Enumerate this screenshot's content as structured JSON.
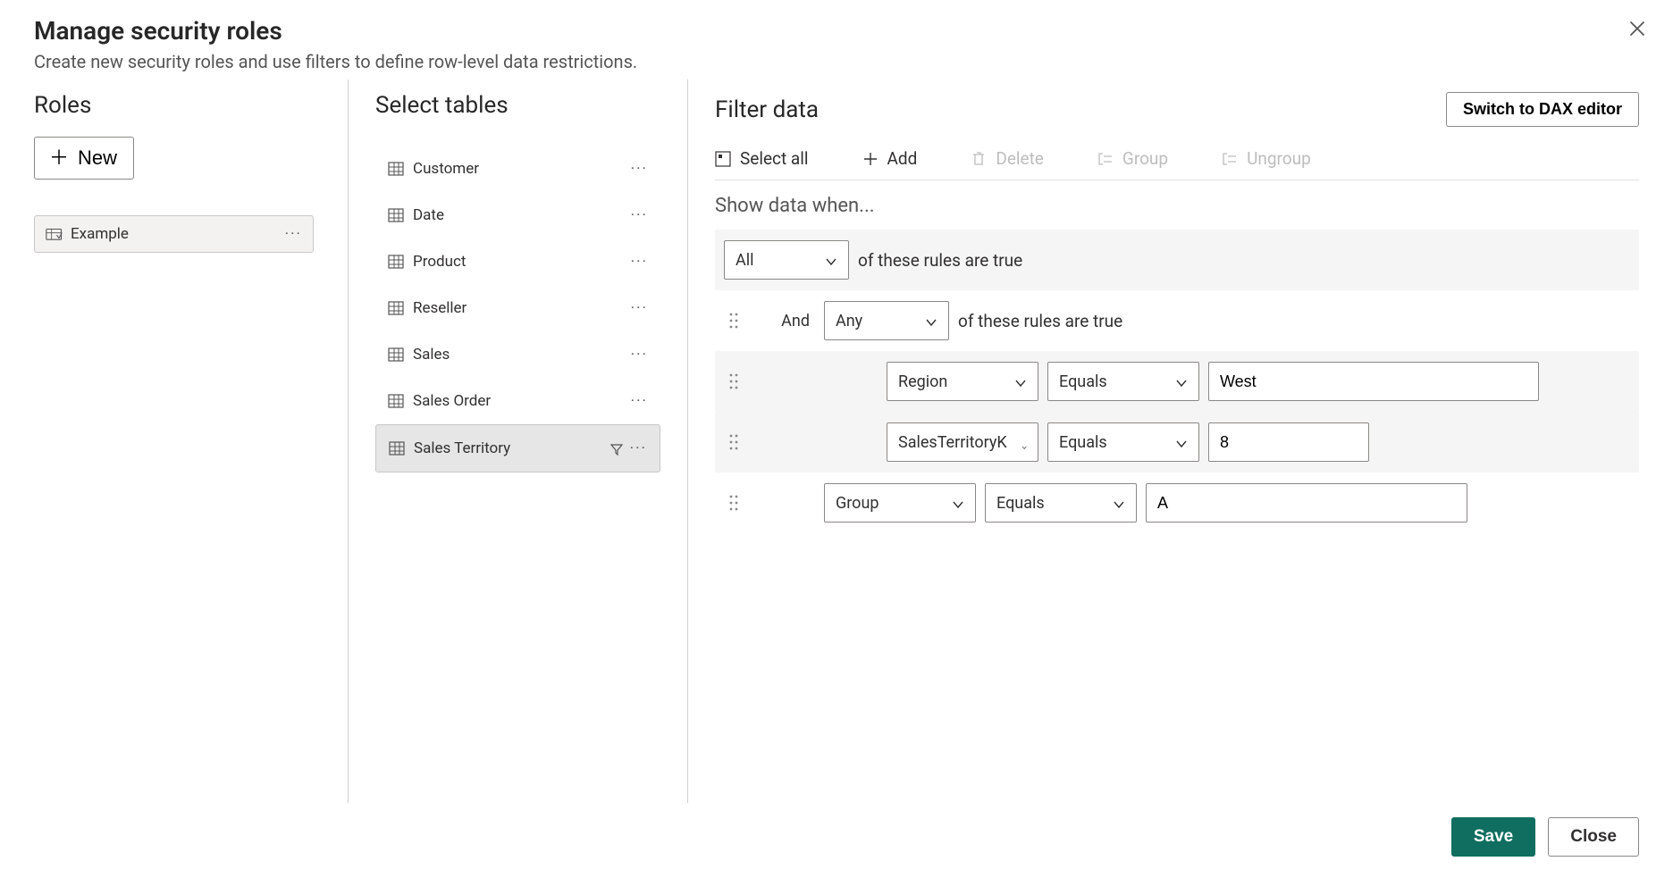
{
  "header": {
    "title": "Manage security roles",
    "subtitle": "Create new security roles and use filters to define row-level data restrictions."
  },
  "roles": {
    "section_label": "Roles",
    "new_button": "New",
    "items": [
      {
        "label": "Example",
        "selected": true
      }
    ]
  },
  "tables": {
    "section_label": "Select tables",
    "items": [
      {
        "label": "Customer",
        "selected": false
      },
      {
        "label": "Date",
        "selected": false
      },
      {
        "label": "Product",
        "selected": false
      },
      {
        "label": "Reseller",
        "selected": false
      },
      {
        "label": "Sales",
        "selected": false
      },
      {
        "label": "Sales Order",
        "selected": false
      },
      {
        "label": "Sales Territory",
        "selected": true,
        "has_filter": true
      }
    ]
  },
  "filter": {
    "section_label": "Filter data",
    "dax_button": "Switch to DAX editor",
    "toolbar": {
      "select_all": "Select all",
      "add": "Add",
      "delete": "Delete",
      "group": "Group",
      "ungroup": "Ungroup"
    },
    "show_data_label": "Show data when...",
    "of_these_true": "of these rules are true",
    "root_combiner": "All",
    "rules": [
      {
        "type": "group",
        "conjunction": "And",
        "combiner": "Any"
      },
      {
        "type": "rule",
        "indent": 2,
        "field": "Region",
        "operator": "Equals",
        "value": "West",
        "value_width": 370
      },
      {
        "type": "rule",
        "indent": 2,
        "field": "SalesTerritoryK",
        "operator": "Equals",
        "value": "8",
        "value_width": 180
      },
      {
        "type": "rule",
        "indent": 1,
        "field": "Group",
        "operator": "Equals",
        "value": "A",
        "value_width": 360
      }
    ]
  },
  "footer": {
    "save": "Save",
    "close": "Close"
  },
  "colors": {
    "primary_button_bg": "#0f6e5f",
    "disabled_text": "#bdbdbd",
    "border": "#8a8886",
    "row_alt_bg": "#f5f5f5",
    "selected_bg": "#e6e6e6"
  }
}
